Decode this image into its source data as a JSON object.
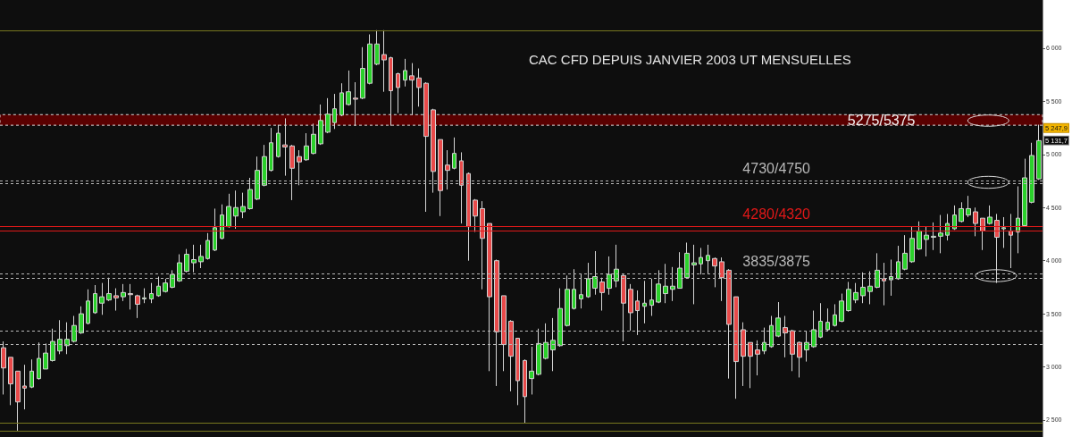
{
  "chart_data": {
    "type": "candlestick",
    "title": "CAC CFD DEPUIS JANVIER 2003 UT MENSUELLES",
    "categories": [
      null,
      null,
      null,
      null,
      null,
      null,
      null,
      null,
      null,
      null,
      null,
      null,
      null,
      null,
      null,
      null,
      null,
      null,
      null,
      null,
      null,
      null,
      null,
      null,
      null,
      null,
      null,
      null,
      null,
      null,
      null,
      null,
      null,
      null,
      null,
      null,
      null,
      null,
      null,
      null,
      null,
      null,
      null,
      null,
      null,
      null,
      null,
      null,
      null,
      null,
      null,
      null,
      null,
      null,
      null,
      null,
      null,
      null,
      null,
      null,
      null,
      null,
      null,
      null,
      null,
      null,
      null,
      null,
      null,
      null,
      null,
      null,
      null,
      null,
      null,
      null,
      null,
      null,
      null,
      null,
      null,
      null,
      null,
      null,
      null,
      null,
      null,
      null,
      null,
      null,
      null,
      null,
      null,
      null,
      null,
      null,
      null,
      null,
      null,
      null,
      null,
      null,
      null,
      null,
      null,
      null,
      null,
      null,
      null,
      null,
      null,
      null,
      null,
      null,
      null,
      null,
      null,
      null,
      null,
      null,
      null,
      null,
      null,
      null,
      null,
      null,
      null,
      null,
      null,
      null,
      null,
      null,
      null,
      null,
      null,
      null,
      null,
      null,
      null,
      null,
      null,
      null,
      null,
      null,
      null,
      null,
      null,
      null
    ],
    "ohlc": [
      [
        3180,
        3240,
        2740,
        2990
      ],
      [
        3090,
        3090,
        2640,
        2840
      ],
      [
        2960,
        2960,
        2400,
        2670
      ],
      [
        2820,
        3020,
        2600,
        2800
      ],
      [
        2810,
        3070,
        2800,
        2960
      ],
      [
        2890,
        3230,
        2880,
        3080
      ],
      [
        2980,
        3220,
        2980,
        3130
      ],
      [
        3060,
        3360,
        3050,
        3240
      ],
      [
        3150,
        3440,
        3120,
        3260
      ],
      [
        3200,
        3420,
        3120,
        3260
      ],
      [
        3240,
        3480,
        3230,
        3390
      ],
      [
        3320,
        3570,
        3310,
        3500
      ],
      [
        3410,
        3730,
        3400,
        3620
      ],
      [
        3510,
        3770,
        3500,
        3690
      ],
      [
        3600,
        3790,
        3490,
        3660
      ],
      [
        3630,
        3840,
        3620,
        3690
      ],
      [
        3670,
        3740,
        3530,
        3650
      ],
      [
        3660,
        3780,
        3620,
        3700
      ],
      [
        3690,
        3780,
        3540,
        3680
      ],
      [
        3670,
        3680,
        3460,
        3590
      ],
      [
        3640,
        3740,
        3600,
        3650
      ],
      [
        3640,
        3790,
        3600,
        3690
      ],
      [
        3670,
        3850,
        3660,
        3760
      ],
      [
        3710,
        3830,
        3700,
        3790
      ],
      [
        3750,
        3910,
        3740,
        3870
      ],
      [
        3810,
        4060,
        3800,
        3980
      ],
      [
        3900,
        4110,
        3890,
        4060
      ],
      [
        3980,
        4150,
        3890,
        4010
      ],
      [
        3990,
        4150,
        3930,
        4040
      ],
      [
        4020,
        4260,
        4010,
        4190
      ],
      [
        4100,
        4490,
        4090,
        4310
      ],
      [
        4210,
        4530,
        4200,
        4430
      ],
      [
        4320,
        4630,
        4310,
        4510
      ],
      [
        4420,
        4660,
        4300,
        4500
      ],
      [
        4460,
        4640,
        4400,
        4510
      ],
      [
        4490,
        4780,
        4480,
        4670
      ],
      [
        4580,
        4980,
        4570,
        4850
      ],
      [
        4710,
        5090,
        4700,
        4980
      ],
      [
        4850,
        5250,
        4840,
        5110
      ],
      [
        4980,
        5280,
        4970,
        5200
      ],
      [
        5090,
        5340,
        4800,
        5070
      ],
      [
        5080,
        5090,
        4570,
        4870
      ],
      [
        4980,
        5040,
        4710,
        4930
      ],
      [
        4950,
        5200,
        4940,
        5080
      ],
      [
        5010,
        5290,
        5000,
        5190
      ],
      [
        5100,
        5470,
        5090,
        5320
      ],
      [
        5210,
        5530,
        5200,
        5380
      ],
      [
        5300,
        5570,
        5240,
        5430
      ],
      [
        5370,
        5670,
        5360,
        5580
      ],
      [
        5470,
        5790,
        5460,
        5590
      ],
      [
        5530,
        5680,
        5270,
        5520
      ],
      [
        5530,
        6010,
        5520,
        5810
      ],
      [
        5670,
        6130,
        5660,
        6040
      ],
      [
        5850,
        6170,
        5840,
        6040
      ],
      [
        5940,
        6170,
        5590,
        5890
      ],
      [
        5910,
        5920,
        5270,
        5600
      ],
      [
        5760,
        5770,
        5390,
        5630
      ],
      [
        5700,
        5900,
        5640,
        5790
      ],
      [
        5740,
        5860,
        5370,
        5700
      ],
      [
        5720,
        5810,
        5450,
        5630
      ],
      [
        5670,
        5680,
        4460,
        5170
      ],
      [
        5420,
        5430,
        4640,
        4840
      ],
      [
        5140,
        5140,
        4420,
        4660
      ],
      [
        4900,
        5040,
        4670,
        4850
      ],
      [
        4870,
        5160,
        4860,
        5010
      ],
      [
        4940,
        5020,
        4350,
        4710
      ],
      [
        4820,
        4830,
        4000,
        4320
      ],
      [
        4570,
        4580,
        4270,
        4420
      ],
      [
        4490,
        4560,
        3730,
        4210
      ],
      [
        4350,
        4350,
        2960,
        3660
      ],
      [
        4000,
        4010,
        2820,
        3330
      ],
      [
        3670,
        3670,
        2960,
        3210
      ],
      [
        3430,
        3440,
        2770,
        3100
      ],
      [
        3270,
        3270,
        2640,
        2870
      ],
      [
        3060,
        3070,
        2470,
        2720
      ],
      [
        2890,
        3190,
        2740,
        2960
      ],
      [
        2930,
        3360,
        2920,
        3220
      ],
      [
        3080,
        3410,
        3070,
        3230
      ],
      [
        3160,
        3460,
        2960,
        3250
      ],
      [
        3200,
        3740,
        3190,
        3550
      ],
      [
        3390,
        3860,
        3380,
        3730
      ],
      [
        3550,
        3920,
        3540,
        3730
      ],
      [
        3640,
        3880,
        3550,
        3680
      ],
      [
        3660,
        3980,
        3650,
        3830
      ],
      [
        3740,
        4090,
        3680,
        3850
      ],
      [
        3800,
        3840,
        3530,
        3700
      ],
      [
        3740,
        4040,
        3680,
        3870
      ],
      [
        3810,
        4150,
        3750,
        3920
      ],
      [
        3860,
        3870,
        3240,
        3600
      ],
      [
        3730,
        3780,
        3340,
        3510
      ],
      [
        3620,
        3720,
        3300,
        3530
      ],
      [
        3570,
        3810,
        3410,
        3600
      ],
      [
        3580,
        3830,
        3480,
        3630
      ],
      [
        3610,
        3910,
        3600,
        3780
      ],
      [
        3690,
        3970,
        3600,
        3760
      ],
      [
        3730,
        3940,
        3620,
        3760
      ],
      [
        3740,
        4080,
        3740,
        3930
      ],
      [
        3840,
        4170,
        3830,
        4070
      ],
      [
        3960,
        4150,
        3590,
        3980
      ],
      [
        3970,
        4120,
        3870,
        4030
      ],
      [
        4000,
        4150,
        3880,
        4050
      ],
      [
        4020,
        4030,
        3750,
        3950
      ],
      [
        3990,
        4030,
        3620,
        3840
      ],
      [
        3910,
        3920,
        2890,
        3400
      ],
      [
        3660,
        3660,
        2700,
        3050
      ],
      [
        3350,
        3420,
        2820,
        3100
      ],
      [
        3230,
        3230,
        2800,
        3100
      ],
      [
        3160,
        3250,
        2920,
        3120
      ],
      [
        3150,
        3370,
        3120,
        3230
      ],
      [
        3190,
        3480,
        3180,
        3390
      ],
      [
        3290,
        3610,
        3280,
        3460
      ],
      [
        3370,
        3480,
        3090,
        3320
      ],
      [
        3340,
        3350,
        2960,
        3120
      ],
      [
        3230,
        3240,
        2900,
        3090
      ],
      [
        3160,
        3340,
        3050,
        3230
      ],
      [
        3190,
        3530,
        3180,
        3350
      ],
      [
        3280,
        3600,
        3270,
        3430
      ],
      [
        3350,
        3550,
        3340,
        3420
      ],
      [
        3390,
        3590,
        3380,
        3490
      ],
      [
        3430,
        3690,
        3420,
        3620
      ],
      [
        3530,
        3800,
        3520,
        3730
      ],
      [
        3630,
        3790,
        3600,
        3700
      ],
      [
        3670,
        3890,
        3600,
        3750
      ],
      [
        3710,
        3900,
        3590,
        3760
      ],
      [
        3750,
        4070,
        3740,
        3910
      ],
      [
        3830,
        3980,
        3580,
        3810
      ],
      [
        3820,
        4010,
        3670,
        3850
      ],
      [
        3830,
        4140,
        3820,
        3990
      ],
      [
        3920,
        4240,
        3910,
        4070
      ],
      [
        3990,
        4320,
        3980,
        4210
      ],
      [
        4110,
        4370,
        4100,
        4280
      ],
      [
        4200,
        4320,
        4040,
        4240
      ],
      [
        4220,
        4360,
        4100,
        4230
      ],
      [
        4230,
        4430,
        4070,
        4260
      ],
      [
        4240,
        4440,
        4190,
        4350
      ],
      [
        4300,
        4520,
        4290,
        4430
      ],
      [
        4370,
        4550,
        4360,
        4490
      ],
      [
        4430,
        4610,
        4410,
        4490
      ],
      [
        4460,
        4500,
        4230,
        4350
      ],
      [
        4400,
        4400,
        4100,
        4280
      ],
      [
        4350,
        4520,
        4340,
        4410
      ],
      [
        4380,
        4440,
        3790,
        4220
      ],
      [
        4300,
        4410,
        4120,
        4310
      ],
      [
        4280,
        4440,
        3930,
        4240
      ],
      [
        4270,
        4700,
        4070,
        4400
      ],
      [
        4330,
        4960,
        4320,
        4780
      ],
      [
        4550,
        5110,
        4540,
        4990
      ],
      [
        4770,
        5280,
        4760,
        5130
      ]
    ],
    "colors": [
      "#e84a4a",
      "#e84a4a",
      "#e84a4a",
      "#e84a4a",
      "#2bd12b",
      "#2bd12b",
      "#2bd12b",
      "#2bd12b",
      "#2bd12b",
      "#2bd12b",
      "#2bd12b",
      "#2bd12b",
      "#2bd12b",
      "#2bd12b",
      "#2bd12b",
      "#2bd12b",
      "#e84a4a",
      "#2bd12b",
      "#e84a4a",
      "#e84a4a",
      "#2bd12b",
      "#2bd12b",
      "#2bd12b",
      "#2bd12b",
      "#2bd12b",
      "#2bd12b",
      "#2bd12b",
      "#2bd12b",
      "#2bd12b",
      "#2bd12b",
      "#2bd12b",
      "#2bd12b",
      "#2bd12b",
      "#2bd12b",
      "#2bd12b",
      "#2bd12b",
      "#2bd12b",
      "#2bd12b",
      "#2bd12b",
      "#2bd12b",
      "#e84a4a",
      "#e84a4a",
      "#e84a4a",
      "#2bd12b",
      "#2bd12b",
      "#2bd12b",
      "#2bd12b",
      "#2bd12b",
      "#2bd12b",
      "#2bd12b",
      "#e84a4a",
      "#2bd12b",
      "#2bd12b",
      "#2bd12b",
      "#e84a4a",
      "#e84a4a",
      "#e84a4a",
      "#2bd12b",
      "#e84a4a",
      "#e84a4a",
      "#e84a4a",
      "#e84a4a",
      "#e84a4a",
      "#e84a4a",
      "#2bd12b",
      "#e84a4a",
      "#e84a4a",
      "#e84a4a",
      "#e84a4a",
      "#e84a4a",
      "#e84a4a",
      "#e84a4a",
      "#e84a4a",
      "#e84a4a",
      "#e84a4a",
      "#2bd12b",
      "#2bd12b",
      "#2bd12b",
      "#2bd12b",
      "#2bd12b",
      "#2bd12b",
      "#2bd12b",
      "#2bd12b",
      "#2bd12b",
      "#2bd12b",
      "#e84a4a",
      "#2bd12b",
      "#2bd12b",
      "#e84a4a",
      "#e84a4a",
      "#e84a4a",
      "#2bd12b",
      "#2bd12b",
      "#2bd12b",
      "#2bd12b",
      "#2bd12b",
      "#2bd12b",
      "#2bd12b",
      "#2bd12b",
      "#2bd12b",
      "#2bd12b",
      "#e84a4a",
      "#e84a4a",
      "#e84a4a",
      "#e84a4a",
      "#e84a4a",
      "#e84a4a",
      "#e84a4a",
      "#2bd12b",
      "#2bd12b",
      "#2bd12b",
      "#e84a4a",
      "#e84a4a",
      "#e84a4a",
      "#2bd12b",
      "#2bd12b",
      "#2bd12b",
      "#2bd12b",
      "#2bd12b",
      "#2bd12b",
      "#2bd12b",
      "#2bd12b",
      "#2bd12b",
      "#2bd12b",
      "#2bd12b",
      "#e84a4a",
      "#2bd12b",
      "#2bd12b",
      "#2bd12b",
      "#2bd12b",
      "#2bd12b",
      "#2bd12b",
      "#2bd12b",
      "#2bd12b",
      "#2bd12b",
      "#2bd12b",
      "#2bd12b",
      "#2bd12b",
      "#e84a4a",
      "#e84a4a",
      "#2bd12b",
      "#e84a4a",
      "#2bd12b",
      "#e84a4a",
      "#2bd12b",
      "#2bd12b",
      "#2bd12b",
      "#2bd12b"
    ],
    "ylim": [
      2340,
      6454
    ],
    "yticks": [
      {
        "value": 2500,
        "label": "2 500"
      },
      {
        "value": 3000,
        "label": "3 000"
      },
      {
        "value": 3500,
        "label": "3 500"
      },
      {
        "value": 4000,
        "label": "4 000"
      },
      {
        "value": 4500,
        "label": "4 500"
      },
      {
        "value": 5000,
        "label": "5 000"
      },
      {
        "value": 5500,
        "label": "5 500"
      },
      {
        "value": 6000,
        "label": "6 000"
      }
    ],
    "tick_labels": "y",
    "bands": [
      {
        "axis": "y",
        "from": 5275,
        "to": 5375,
        "label": "5275/5375",
        "color": "#5a0000"
      }
    ],
    "ref_lines": [
      {
        "axis": "y",
        "value": 6170,
        "color": "#77771f"
      },
      {
        "axis": "y",
        "value": 4750,
        "label": "4730/4750",
        "color": "#b8b8b8",
        "line_style": "dashed"
      },
      {
        "axis": "y",
        "value": 4730,
        "color": "#b8b8b8",
        "line_style": "dashed"
      },
      {
        "axis": "y",
        "value": 4320,
        "label": "4280/4320",
        "color": "#e01818"
      },
      {
        "axis": "y",
        "value": 4280,
        "color": "#e01818"
      },
      {
        "axis": "y",
        "value": 3875,
        "label": "3835/3875",
        "color": "#b8b8b8",
        "line_style": "dashed"
      },
      {
        "axis": "y",
        "value": 3835,
        "color": "#b8b8b8",
        "line_style": "dashed"
      },
      {
        "axis": "y",
        "value": 3340,
        "color": "#b8b8b8",
        "line_style": "dashed"
      },
      {
        "axis": "y",
        "value": 3210,
        "color": "#b8b8b8",
        "line_style": "dashed"
      },
      {
        "axis": "y",
        "value": 2470,
        "color": "#77771f"
      },
      {
        "axis": "y",
        "value": 2400,
        "color": "#77771f"
      }
    ],
    "annotations": [
      {
        "text": "5 247,9",
        "y": 5247.9
      },
      {
        "text": "5 131,7",
        "y": 5131.7
      }
    ]
  }
}
